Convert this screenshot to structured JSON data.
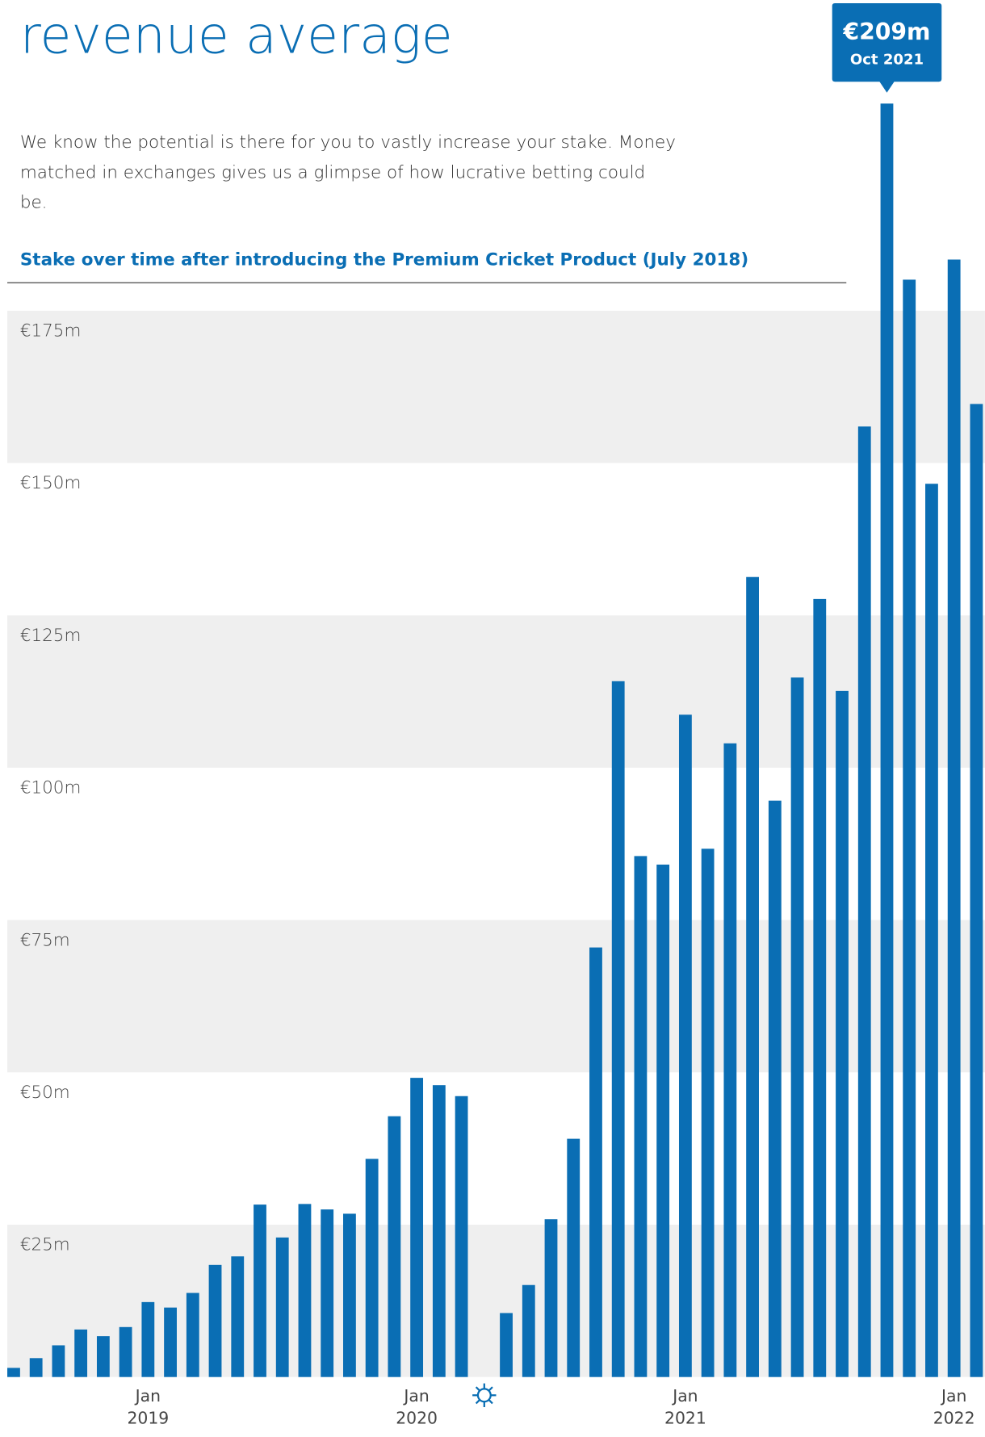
{
  "chart_data": {
    "type": "bar",
    "title": "revenue average",
    "subtitle": "We know the potential is there for you to vastly increase your stake. Money matched in exchanges gives us a glimpse of how lucrative betting could be.",
    "chart_title": "Stake over time after introducing the Premium Cricket Product (July 2018)",
    "categories": [
      null,
      null,
      null,
      null,
      null,
      null,
      "Jan 2019",
      null,
      null,
      null,
      null,
      null,
      null,
      null,
      null,
      null,
      null,
      null,
      "Jan 2020",
      null,
      null,
      null,
      null,
      null,
      null,
      null,
      null,
      null,
      null,
      null,
      "Jan 2021",
      null,
      null,
      null,
      null,
      null,
      null,
      null,
      null,
      null,
      null,
      null,
      "Jan 2022",
      null
    ],
    "values": [
      1.5,
      3.1,
      5.2,
      7.8,
      6.7,
      8.2,
      12.3,
      11.4,
      13.8,
      18.4,
      19.8,
      28.3,
      22.9,
      28.4,
      27.5,
      26.8,
      35.8,
      42.8,
      49.1,
      47.9,
      46.1,
      null,
      10.5,
      15.1,
      25.9,
      39.1,
      70.5,
      114.2,
      85.5,
      84.1,
      108.7,
      86.7,
      104.0,
      131.3,
      94.6,
      114.8,
      127.7,
      112.6,
      156.0,
      209,
      180.1,
      146.6,
      183.4,
      159.7
    ],
    "value_labels": [
      null,
      null,
      null,
      null,
      null,
      null,
      null,
      null,
      null,
      null,
      null,
      null,
      null,
      null,
      null,
      null,
      null,
      null,
      null,
      null,
      null,
      null,
      null,
      null,
      null,
      null,
      null,
      null,
      null,
      null,
      null,
      null,
      null,
      null,
      null,
      null,
      null,
      null,
      null,
      "€209m",
      null,
      null,
      null,
      null
    ],
    "value_notes": [
      null,
      null,
      null,
      null,
      null,
      null,
      null,
      null,
      null,
      null,
      null,
      null,
      null,
      null,
      null,
      null,
      null,
      null,
      null,
      null,
      null,
      null,
      null,
      null,
      null,
      null,
      null,
      null,
      null,
      null,
      null,
      null,
      null,
      null,
      null,
      null,
      null,
      null,
      null,
      "Oct 2021",
      null,
      null,
      null,
      null
    ],
    "color": "#0a6eb4",
    "ylim": [
      0,
      226
    ],
    "yticks": [
      {
        "value": 25,
        "label": "€25m"
      },
      {
        "value": 50,
        "label": "€50m"
      },
      {
        "value": 75,
        "label": "€75m"
      },
      {
        "value": 100,
        "label": "€100m"
      },
      {
        "value": 125,
        "label": "€125m"
      },
      {
        "value": 150,
        "label": "€150m"
      },
      {
        "value": 175,
        "label": "€175m"
      }
    ],
    "grid": "bands"
  }
}
